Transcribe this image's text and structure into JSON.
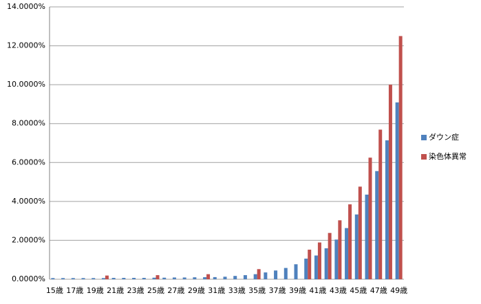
{
  "chart_data": {
    "type": "bar",
    "categories": [
      "15歳",
      null,
      "17歳",
      null,
      "19歳",
      null,
      "21歳",
      null,
      "23歳",
      null,
      "25歳",
      null,
      "27歳",
      null,
      "29歳",
      null,
      "31歳",
      null,
      "33歳",
      null,
      "35歳",
      null,
      "37歳",
      null,
      "39歳",
      null,
      "41歳",
      null,
      "43歳",
      null,
      "45歳",
      null,
      "47歳",
      null,
      "49歳"
    ],
    "series": [
      {
        "name": "ダウン症",
        "color": "#4f81bd",
        "values": [
          0.06,
          0.06,
          0.06,
          0.06,
          0.06,
          0.06,
          0.07,
          0.07,
          0.07,
          0.07,
          0.08,
          0.08,
          0.09,
          0.09,
          0.1,
          0.105,
          0.11,
          0.13,
          0.17,
          0.21,
          0.26,
          0.35,
          0.45,
          0.58,
          0.77,
          1.06,
          1.22,
          1.59,
          2.04,
          2.63,
          3.33,
          4.35,
          5.56,
          7.14,
          9.09
        ]
      },
      {
        "name": "染色体異常",
        "color": "#c0504d",
        "values": [
          null,
          null,
          null,
          null,
          null,
          0.19,
          null,
          null,
          null,
          null,
          0.21,
          null,
          null,
          null,
          null,
          0.26,
          null,
          null,
          null,
          null,
          0.52,
          null,
          null,
          null,
          null,
          1.52,
          1.89,
          2.38,
          3.03,
          3.85,
          4.76,
          6.25,
          7.69,
          10,
          12.5
        ]
      }
    ],
    "ylim": [
      0,
      14
    ],
    "yticks": [
      {
        "value": 0,
        "label": "0.0000%"
      },
      {
        "value": 2,
        "label": "2.0000%"
      },
      {
        "value": 4,
        "label": "4.0000%"
      },
      {
        "value": 6,
        "label": "6.0000%"
      },
      {
        "value": 8,
        "label": "8.0000%"
      },
      {
        "value": 10,
        "label": "10.0000%"
      },
      {
        "value": 12,
        "label": "12.0000%"
      },
      {
        "value": 14,
        "label": "14.0000%"
      }
    ],
    "grid": true,
    "legend": "right"
  }
}
